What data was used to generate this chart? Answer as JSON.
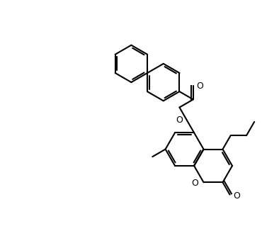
{
  "background": "#ffffff",
  "line_color": "#000000",
  "line_width": 1.5,
  "fig_width": 3.94,
  "fig_height": 3.33,
  "dpi": 100,
  "xlim": [
    0,
    10
  ],
  "ylim": [
    0,
    8.5
  ]
}
